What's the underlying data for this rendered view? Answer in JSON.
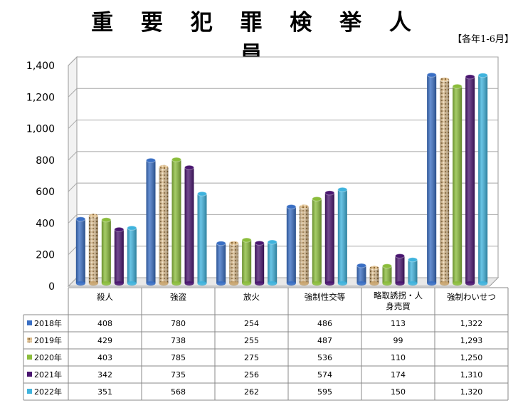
{
  "title": "重 要 犯 罪 検 挙 人 員",
  "period_note": "【各年1-6月】",
  "colors": {
    "2018年": "#3a6fc4",
    "2019年": "#c8a46e",
    "2020年": "#8bbd3c",
    "2021年": "#4a1670",
    "2022年": "#3fb3dd"
  },
  "chart_data": {
    "type": "bar",
    "title": "重 要 犯 罪 検 挙 人 員",
    "subtitle": "【各年1-6月】",
    "categories": [
      "殺人",
      "強盗",
      "放火",
      "強制性交等",
      "略取誘拐・人身売買",
      "強制わいせつ"
    ],
    "category_lines": [
      [
        "殺人"
      ],
      [
        "強盗"
      ],
      [
        "放火"
      ],
      [
        "強制性交等"
      ],
      [
        "略取誘拐・人",
        "身売買"
      ],
      [
        "強制わいせつ"
      ]
    ],
    "series": [
      {
        "name": "2018年",
        "values": [
          408,
          780,
          254,
          486,
          113,
          1322
        ],
        "labels": [
          "408",
          "780",
          "254",
          "486",
          "113",
          "1,322"
        ]
      },
      {
        "name": "2019年",
        "values": [
          429,
          738,
          255,
          487,
          99,
          1293
        ],
        "labels": [
          "429",
          "738",
          "255",
          "487",
          "99",
          "1,293"
        ]
      },
      {
        "name": "2020年",
        "values": [
          403,
          785,
          275,
          536,
          110,
          1250
        ],
        "labels": [
          "403",
          "785",
          "275",
          "536",
          "110",
          "1,250"
        ]
      },
      {
        "name": "2021年",
        "values": [
          342,
          735,
          256,
          574,
          174,
          1310
        ],
        "labels": [
          "342",
          "735",
          "256",
          "574",
          "174",
          "1,310"
        ]
      },
      {
        "name": "2022年",
        "values": [
          351,
          568,
          262,
          595,
          150,
          1320
        ],
        "labels": [
          "351",
          "568",
          "262",
          "595",
          "150",
          "1,320"
        ]
      }
    ],
    "ylim": [
      0,
      1400
    ],
    "yticks": [
      0,
      200,
      400,
      600,
      800,
      1000,
      1200,
      1400
    ],
    "ytick_labels": [
      "0",
      "200",
      "400",
      "600",
      "800",
      "1,000",
      "1,200",
      "1,400"
    ],
    "grid": true,
    "legend": "data-table"
  }
}
